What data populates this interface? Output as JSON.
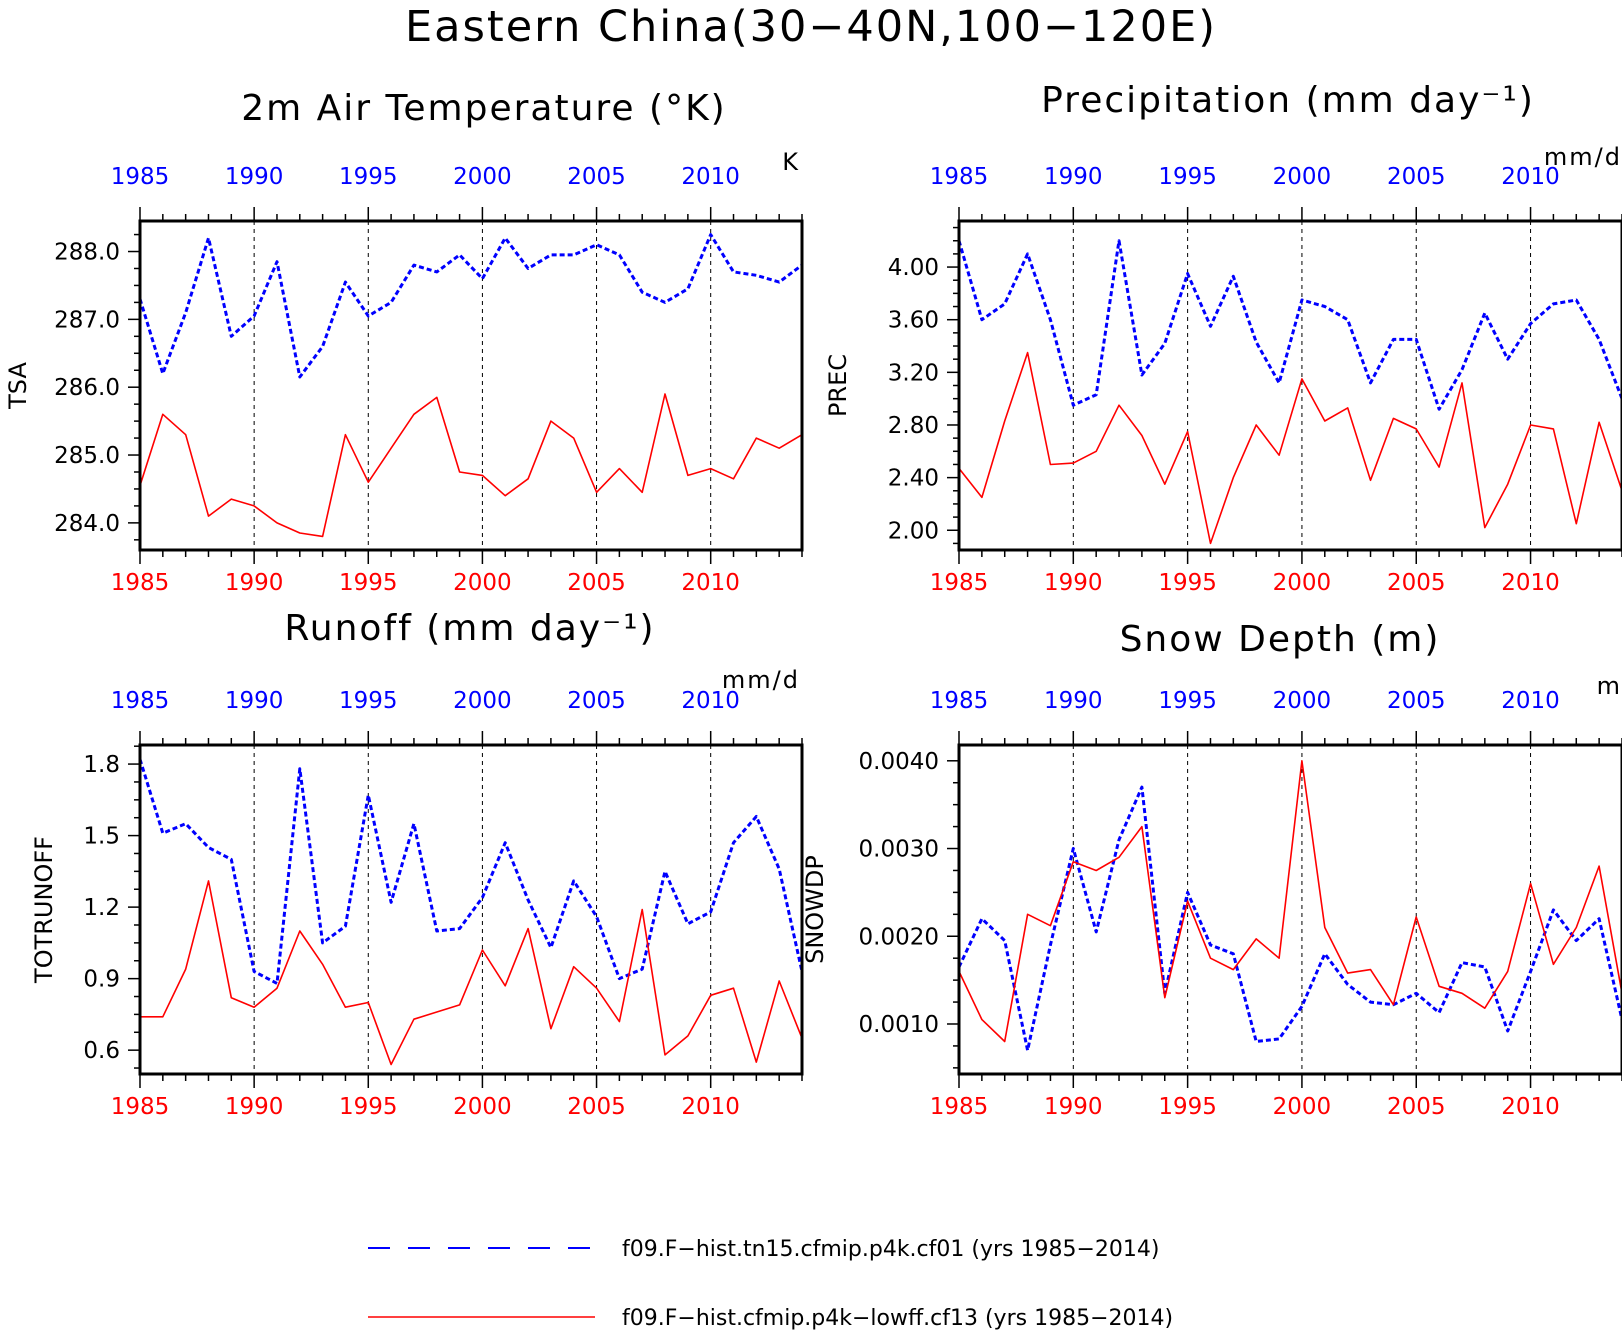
{
  "figure": {
    "title": "Eastern China(30−40N,100−120E)"
  },
  "colors": {
    "blue": "#0000ff",
    "red": "#ff0000",
    "frame": "#000000"
  },
  "legend": [
    {
      "label": "f09.F−hist.tn15.cfmip.p4k.cf01 (yrs 1985−2014)",
      "color": "#0000ff",
      "style": "dashed"
    },
    {
      "label": "f09.F−hist.cfmip.p4k−lowff.cf13 (yrs 1985−2014)",
      "color": "#ff0000",
      "style": "solid"
    }
  ],
  "chart_data": [
    {
      "type": "line",
      "title": "2m Air Temperature (°K)",
      "ylabel": "TSA",
      "unit_label": "K",
      "x": [
        1985,
        1986,
        1987,
        1988,
        1989,
        1990,
        1991,
        1992,
        1993,
        1994,
        1995,
        1996,
        1997,
        1998,
        1999,
        2000,
        2001,
        2002,
        2003,
        2004,
        2005,
        2006,
        2007,
        2008,
        2009,
        2010,
        2011,
        2012,
        2013,
        2014
      ],
      "xlim": [
        1985,
        2014
      ],
      "xticks": [
        "1985",
        "1990",
        "1995",
        "2000",
        "2005",
        "2010"
      ],
      "ylim": [
        283.6,
        288.45
      ],
      "yticks": [
        "284.0",
        "285.0",
        "286.0",
        "287.0",
        "288.0"
      ],
      "grid": "dashed vertical at 5-year ticks",
      "series": [
        {
          "color": "#0000ff",
          "style": "dashed",
          "values": [
            287.3,
            286.2,
            287.1,
            288.2,
            286.75,
            287.05,
            287.85,
            286.15,
            286.6,
            287.55,
            287.05,
            287.25,
            287.8,
            287.7,
            287.95,
            287.6,
            288.2,
            287.75,
            287.95,
            287.95,
            288.1,
            287.95,
            287.4,
            287.25,
            287.45,
            288.25,
            287.7,
            287.65,
            287.55,
            287.8
          ]
        },
        {
          "color": "#ff0000",
          "style": "solid",
          "values": [
            284.55,
            285.6,
            285.3,
            284.1,
            284.35,
            284.25,
            284.0,
            283.85,
            283.8,
            285.3,
            284.6,
            285.1,
            285.6,
            285.85,
            284.75,
            284.7,
            284.4,
            284.65,
            285.5,
            285.25,
            284.45,
            284.8,
            284.45,
            285.9,
            284.7,
            284.8,
            284.65,
            285.25,
            285.1,
            285.3
          ]
        }
      ]
    },
    {
      "type": "line",
      "title": "Precipitation (mm day⁻¹)",
      "ylabel": "PREC",
      "unit_label": "mm/d",
      "x": [
        1985,
        1986,
        1987,
        1988,
        1989,
        1990,
        1991,
        1992,
        1993,
        1994,
        1995,
        1996,
        1997,
        1998,
        1999,
        2000,
        2001,
        2002,
        2003,
        2004,
        2005,
        2006,
        2007,
        2008,
        2009,
        2010,
        2011,
        2012,
        2013,
        2014
      ],
      "xlim": [
        1985,
        2014
      ],
      "xticks": [
        "1985",
        "1990",
        "1995",
        "2000",
        "2005",
        "2010"
      ],
      "ylim": [
        1.85,
        4.35
      ],
      "yticks": [
        "2.00",
        "2.40",
        "2.80",
        "3.20",
        "3.60",
        "4.00"
      ],
      "grid": "dashed vertical at 5-year ticks",
      "series": [
        {
          "color": "#0000ff",
          "style": "dashed",
          "values": [
            4.2,
            3.6,
            3.72,
            4.1,
            3.6,
            2.95,
            3.03,
            4.2,
            3.18,
            3.42,
            3.95,
            3.55,
            3.93,
            3.43,
            3.12,
            3.75,
            3.7,
            3.6,
            3.12,
            3.45,
            3.45,
            2.92,
            3.22,
            3.65,
            3.3,
            3.57,
            3.72,
            3.75,
            3.45,
            3.0
          ]
        },
        {
          "color": "#ff0000",
          "style": "solid",
          "values": [
            2.47,
            2.25,
            2.83,
            3.35,
            2.5,
            2.51,
            2.6,
            2.95,
            2.72,
            2.35,
            2.75,
            1.9,
            2.4,
            2.8,
            2.57,
            3.15,
            2.83,
            2.93,
            2.38,
            2.85,
            2.77,
            2.48,
            3.12,
            2.02,
            2.35,
            2.8,
            2.77,
            2.05,
            2.82,
            2.3
          ]
        }
      ]
    },
    {
      "type": "line",
      "title": "Runoff (mm day⁻¹)",
      "ylabel": "TOTRUNOFF",
      "unit_label": "mm/d",
      "x": [
        1985,
        1986,
        1987,
        1988,
        1989,
        1990,
        1991,
        1992,
        1993,
        1994,
        1995,
        1996,
        1997,
        1998,
        1999,
        2000,
        2001,
        2002,
        2003,
        2004,
        2005,
        2006,
        2007,
        2008,
        2009,
        2010,
        2011,
        2012,
        2013,
        2014
      ],
      "xlim": [
        1985,
        2014
      ],
      "xticks": [
        "1985",
        "1990",
        "1995",
        "2000",
        "2005",
        "2010"
      ],
      "ylim": [
        0.5,
        1.88
      ],
      "yticks": [
        "0.6",
        "0.9",
        "1.2",
        "1.5",
        "1.8"
      ],
      "grid": "dashed vertical at 5-year ticks",
      "series": [
        {
          "color": "#0000ff",
          "style": "dashed",
          "values": [
            1.82,
            1.51,
            1.55,
            1.45,
            1.4,
            0.93,
            0.88,
            1.78,
            1.05,
            1.12,
            1.67,
            1.22,
            1.55,
            1.1,
            1.11,
            1.24,
            1.47,
            1.23,
            1.03,
            1.31,
            1.16,
            0.9,
            0.94,
            1.35,
            1.13,
            1.18,
            1.47,
            1.58,
            1.36,
            0.93
          ]
        },
        {
          "color": "#ff0000",
          "style": "solid",
          "values": [
            0.74,
            0.74,
            0.94,
            1.31,
            0.82,
            0.78,
            0.86,
            1.1,
            0.96,
            0.78,
            0.8,
            0.54,
            0.73,
            0.76,
            0.79,
            1.02,
            0.87,
            1.11,
            0.69,
            0.95,
            0.86,
            0.72,
            1.19,
            0.58,
            0.66,
            0.83,
            0.86,
            0.55,
            0.89,
            0.65
          ]
        }
      ]
    },
    {
      "type": "line",
      "title": "Snow Depth (m)",
      "ylabel": "SNOWDP",
      "unit_label": "m",
      "x": [
        1985,
        1986,
        1987,
        1988,
        1989,
        1990,
        1991,
        1992,
        1993,
        1994,
        1995,
        1996,
        1997,
        1998,
        1999,
        2000,
        2001,
        2002,
        2003,
        2004,
        2005,
        2006,
        2007,
        2008,
        2009,
        2010,
        2011,
        2012,
        2013,
        2014
      ],
      "xlim": [
        1985,
        2014
      ],
      "xticks": [
        "1985",
        "1990",
        "1995",
        "2000",
        "2005",
        "2010"
      ],
      "ylim": [
        0.00043,
        0.00418
      ],
      "yticks": [
        "0.0010",
        "0.0020",
        "0.0030",
        "0.0040"
      ],
      "grid": "dashed vertical at 5-year ticks",
      "series": [
        {
          "color": "#0000ff",
          "style": "dashed",
          "values": [
            0.00165,
            0.0022,
            0.00195,
            0.0007,
            0.0019,
            0.003,
            0.00205,
            0.0031,
            0.0037,
            0.00135,
            0.0025,
            0.0019,
            0.0018,
            0.0008,
            0.00083,
            0.0012,
            0.0018,
            0.00145,
            0.00125,
            0.00122,
            0.00135,
            0.00113,
            0.0017,
            0.00165,
            0.00092,
            0.0016,
            0.0023,
            0.00195,
            0.0022,
            0.00105
          ]
        },
        {
          "color": "#ff0000",
          "style": "solid",
          "values": [
            0.0016,
            0.00105,
            0.0008,
            0.00225,
            0.00212,
            0.00285,
            0.00275,
            0.0029,
            0.00325,
            0.0013,
            0.0024,
            0.00175,
            0.00162,
            0.00197,
            0.00175,
            0.004,
            0.0021,
            0.00158,
            0.00162,
            0.00122,
            0.00222,
            0.00143,
            0.00135,
            0.00118,
            0.0016,
            0.0026,
            0.00168,
            0.0021,
            0.0028,
            0.00135
          ]
        }
      ]
    }
  ]
}
